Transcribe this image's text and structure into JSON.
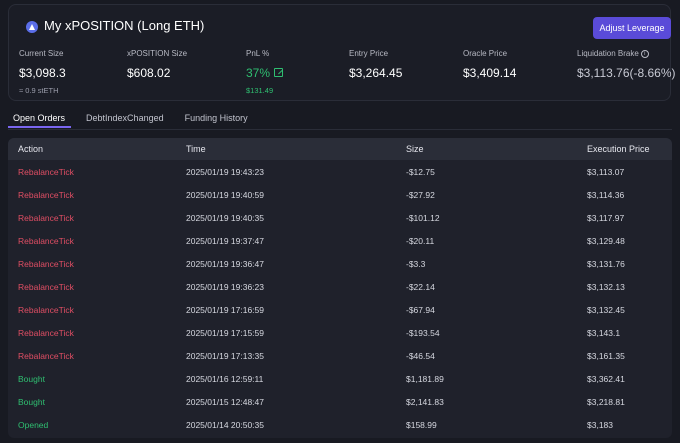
{
  "position": {
    "title": "My xPOSITION (Long ETH)",
    "adjust_label": "Adjust Leverage",
    "stats": {
      "current_size": {
        "label": "Current Size",
        "value": "$3,098.3",
        "sub": "≈ 0.9 stETH"
      },
      "xposition_size": {
        "label": "xPOSITION Size",
        "value": "$608.02"
      },
      "pnl": {
        "label": "PnL %",
        "value": "37%",
        "sub": "$131.49"
      },
      "entry_price": {
        "label": "Entry Price",
        "value": "$3,264.45"
      },
      "oracle_price": {
        "label": "Oracle Price",
        "value": "$3,409.14"
      },
      "liquidation": {
        "label": "Liquidation Brake",
        "value": "$3,113.76(-8.66%)"
      }
    }
  },
  "tabs": [
    {
      "label": "Open Orders"
    },
    {
      "label": "DebtIndexChanged"
    },
    {
      "label": "Funding History"
    }
  ],
  "table": {
    "headers": {
      "action": "Action",
      "time": "Time",
      "size": "Size",
      "price": "Execution Price"
    },
    "rows": [
      {
        "action": "RebalanceTick",
        "time": "2025/01/19 19:43:23",
        "size": "-$12.75",
        "price": "$3,113.07"
      },
      {
        "action": "RebalanceTick",
        "time": "2025/01/19 19:40:59",
        "size": "-$27.92",
        "price": "$3,114.36"
      },
      {
        "action": "RebalanceTick",
        "time": "2025/01/19 19:40:35",
        "size": "-$101.12",
        "price": "$3,117.97"
      },
      {
        "action": "RebalanceTick",
        "time": "2025/01/19 19:37:47",
        "size": "-$20.11",
        "price": "$3,129.48"
      },
      {
        "action": "RebalanceTick",
        "time": "2025/01/19 19:36:47",
        "size": "-$3.3",
        "price": "$3,131.76"
      },
      {
        "action": "RebalanceTick",
        "time": "2025/01/19 19:36:23",
        "size": "-$22.14",
        "price": "$3,132.13"
      },
      {
        "action": "RebalanceTick",
        "time": "2025/01/19 17:16:59",
        "size": "-$67.94",
        "price": "$3,132.45"
      },
      {
        "action": "RebalanceTick",
        "time": "2025/01/19 17:15:59",
        "size": "-$193.54",
        "price": "$3,143.1"
      },
      {
        "action": "RebalanceTick",
        "time": "2025/01/19 17:13:35",
        "size": "-$46.54",
        "price": "$3,161.35"
      },
      {
        "action": "Bought",
        "time": "2025/01/16 12:59:11",
        "size": "$1,181.89",
        "price": "$3,362.41"
      },
      {
        "action": "Bought",
        "time": "2025/01/15 12:48:47",
        "size": "$2,141.83",
        "price": "$3,218.81"
      },
      {
        "action": "Opened",
        "time": "2025/01/14 20:50:35",
        "size": "$158.99",
        "price": "$3,183"
      }
    ]
  },
  "colors": {
    "accent": "#5a4bd8",
    "negative": "#e04e64",
    "positive": "#2fbf71"
  }
}
